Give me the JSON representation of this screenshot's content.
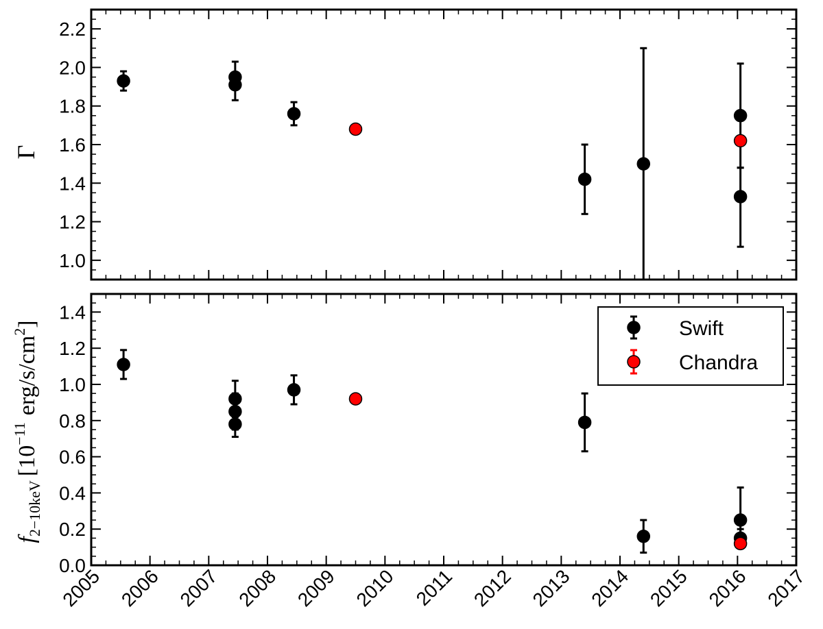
{
  "chart_data": [
    {
      "type": "scatter",
      "panel": "top",
      "ylabel": "Γ",
      "xlim": [
        2005,
        2017
      ],
      "ylim": [
        0.9,
        2.3
      ],
      "yticks": [
        1.0,
        1.2,
        1.4,
        1.6,
        1.8,
        2.0,
        2.2
      ],
      "grid": false,
      "series": [
        {
          "name": "Swift",
          "color": "#000000",
          "points": [
            {
              "x": 2005.55,
              "y": 1.93,
              "err_low": 0.05,
              "err_high": 0.05
            },
            {
              "x": 2007.45,
              "y": 1.95,
              "err_low": 0.05,
              "err_high": 0.08
            },
            {
              "x": 2007.45,
              "y": 1.91,
              "err_low": 0.08,
              "err_high": 0.06
            },
            {
              "x": 2008.45,
              "y": 1.76,
              "err_low": 0.06,
              "err_high": 0.06
            },
            {
              "x": 2013.4,
              "y": 1.42,
              "err_low": 0.18,
              "err_high": 0.18
            },
            {
              "x": 2014.4,
              "y": 1.5,
              "err_low": 0.6,
              "err_high": 0.6
            },
            {
              "x": 2016.05,
              "y": 1.75,
              "err_low": 0.27,
              "err_high": 0.27
            },
            {
              "x": 2016.05,
              "y": 1.33,
              "err_low": 0.26,
              "err_high": 0.15
            }
          ]
        },
        {
          "name": "Chandra",
          "color": "#ff0000",
          "points": [
            {
              "x": 2009.5,
              "y": 1.68,
              "err_low": 0.01,
              "err_high": 0.01
            },
            {
              "x": 2016.05,
              "y": 1.62,
              "err_low": 0.01,
              "err_high": 0.01
            }
          ]
        }
      ]
    },
    {
      "type": "scatter",
      "panel": "bottom",
      "ylabel_main": "f",
      "ylabel_sub": "2−10keV",
      "ylabel_unit_a": "[10",
      "ylabel_unit_exp": "−11",
      "ylabel_unit_b": "erg/s/cm",
      "ylabel_unit_exp2": "2",
      "ylabel_unit_c": "]",
      "xlim": [
        2005,
        2017
      ],
      "ylim": [
        0.0,
        1.5
      ],
      "yticks": [
        0.0,
        0.2,
        0.4,
        0.6,
        0.8,
        1.0,
        1.2,
        1.4
      ],
      "xticks": [
        2005,
        2006,
        2007,
        2008,
        2009,
        2010,
        2011,
        2012,
        2013,
        2014,
        2015,
        2016,
        2017
      ],
      "grid": false,
      "legend_position": "top-right",
      "series": [
        {
          "name": "Swift",
          "color": "#000000",
          "points": [
            {
              "x": 2005.55,
              "y": 1.11,
              "err_low": 0.08,
              "err_high": 0.08
            },
            {
              "x": 2007.45,
              "y": 0.92,
              "err_low": 0.1,
              "err_high": 0.1
            },
            {
              "x": 2007.45,
              "y": 0.85,
              "err_low": 0.1,
              "err_high": 0.1
            },
            {
              "x": 2007.45,
              "y": 0.78,
              "err_low": 0.07,
              "err_high": 0.07
            },
            {
              "x": 2008.45,
              "y": 0.97,
              "err_low": 0.08,
              "err_high": 0.08
            },
            {
              "x": 2013.4,
              "y": 0.79,
              "err_low": 0.16,
              "err_high": 0.16
            },
            {
              "x": 2014.4,
              "y": 0.16,
              "err_low": 0.09,
              "err_high": 0.09
            },
            {
              "x": 2016.05,
              "y": 0.25,
              "err_low": 0.1,
              "err_high": 0.18
            },
            {
              "x": 2016.05,
              "y": 0.15,
              "err_low": 0.05,
              "err_high": 0.05
            }
          ]
        },
        {
          "name": "Chandra",
          "color": "#ff0000",
          "points": [
            {
              "x": 2009.5,
              "y": 0.92,
              "err_low": 0.01,
              "err_high": 0.01
            },
            {
              "x": 2016.05,
              "y": 0.12,
              "err_low": 0.01,
              "err_high": 0.01
            }
          ]
        }
      ]
    }
  ]
}
